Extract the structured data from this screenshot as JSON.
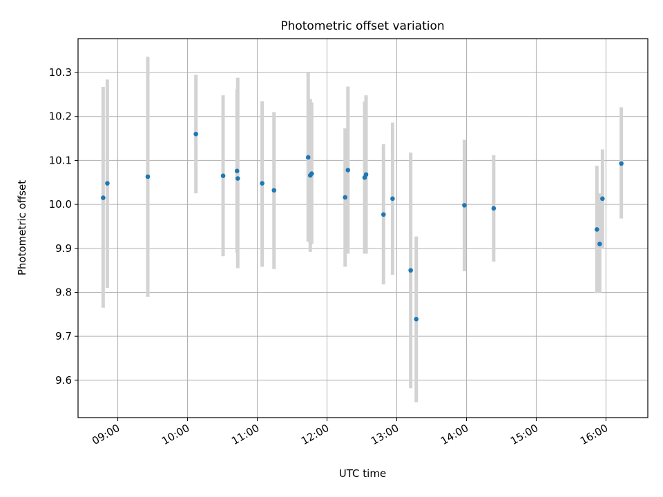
{
  "chart_data": {
    "type": "scatter",
    "title": "Photometric offset variation",
    "xlabel": "UTC time",
    "ylabel": "Photometric offset",
    "x_unit": "hours UTC",
    "xlim": [
      8.43,
      16.6
    ],
    "ylim": [
      9.515,
      10.377
    ],
    "grid": true,
    "x_ticks": [
      {
        "value": 9,
        "label": "09:00"
      },
      {
        "value": 10,
        "label": "10:00"
      },
      {
        "value": 11,
        "label": "11:00"
      },
      {
        "value": 12,
        "label": "12:00"
      },
      {
        "value": 13,
        "label": "13:00"
      },
      {
        "value": 14,
        "label": "14:00"
      },
      {
        "value": 15,
        "label": "15:00"
      },
      {
        "value": 16,
        "label": "16:00"
      }
    ],
    "y_ticks": [
      {
        "value": 9.6,
        "label": "9.6"
      },
      {
        "value": 9.7,
        "label": "9.7"
      },
      {
        "value": 9.8,
        "label": "9.8"
      },
      {
        "value": 9.9,
        "label": "9.9"
      },
      {
        "value": 10.0,
        "label": "10.0"
      },
      {
        "value": 10.1,
        "label": "10.1"
      },
      {
        "value": 10.2,
        "label": "10.2"
      },
      {
        "value": 10.3,
        "label": "10.3"
      }
    ],
    "series": [
      {
        "marker_color": "#1f77b4",
        "errorbar_color": "#d3d3d3",
        "points": [
          {
            "x": 8.79,
            "y": 10.015,
            "lo": 9.765,
            "hi": 10.267
          },
          {
            "x": 8.85,
            "y": 10.048,
            "lo": 9.81,
            "hi": 10.284
          },
          {
            "x": 9.43,
            "y": 10.063,
            "lo": 9.79,
            "hi": 10.336
          },
          {
            "x": 10.12,
            "y": 10.16,
            "lo": 10.025,
            "hi": 10.295
          },
          {
            "x": 10.51,
            "y": 10.065,
            "lo": 9.882,
            "hi": 10.248
          },
          {
            "x": 10.71,
            "y": 10.076,
            "lo": 9.89,
            "hi": 10.262
          },
          {
            "x": 10.72,
            "y": 10.059,
            "lo": 9.855,
            "hi": 10.288
          },
          {
            "x": 11.07,
            "y": 10.048,
            "lo": 9.858,
            "hi": 10.235
          },
          {
            "x": 11.24,
            "y": 10.032,
            "lo": 9.853,
            "hi": 10.21
          },
          {
            "x": 11.73,
            "y": 10.107,
            "lo": 9.915,
            "hi": 10.299
          },
          {
            "x": 11.76,
            "y": 10.066,
            "lo": 9.892,
            "hi": 10.24
          },
          {
            "x": 11.78,
            "y": 10.07,
            "lo": 9.91,
            "hi": 10.232
          },
          {
            "x": 12.26,
            "y": 10.016,
            "lo": 9.858,
            "hi": 10.173
          },
          {
            "x": 12.3,
            "y": 10.078,
            "lo": 9.888,
            "hi": 10.268
          },
          {
            "x": 12.54,
            "y": 10.061,
            "lo": 9.888,
            "hi": 10.234
          },
          {
            "x": 12.56,
            "y": 10.068,
            "lo": 9.888,
            "hi": 10.248
          },
          {
            "x": 12.81,
            "y": 9.977,
            "lo": 9.818,
            "hi": 10.137
          },
          {
            "x": 12.94,
            "y": 10.013,
            "lo": 9.84,
            "hi": 10.186
          },
          {
            "x": 13.2,
            "y": 9.85,
            "lo": 9.582,
            "hi": 10.118
          },
          {
            "x": 13.28,
            "y": 9.739,
            "lo": 9.55,
            "hi": 9.927
          },
          {
            "x": 13.97,
            "y": 9.998,
            "lo": 9.848,
            "hi": 10.147
          },
          {
            "x": 14.39,
            "y": 9.991,
            "lo": 9.87,
            "hi": 10.112
          },
          {
            "x": 15.87,
            "y": 9.943,
            "lo": 9.798,
            "hi": 10.088
          },
          {
            "x": 15.91,
            "y": 9.91,
            "lo": 9.8,
            "hi": 10.025
          },
          {
            "x": 15.95,
            "y": 10.013,
            "lo": 9.9,
            "hi": 10.125
          },
          {
            "x": 16.22,
            "y": 10.093,
            "lo": 9.968,
            "hi": 10.221
          }
        ]
      }
    ]
  }
}
